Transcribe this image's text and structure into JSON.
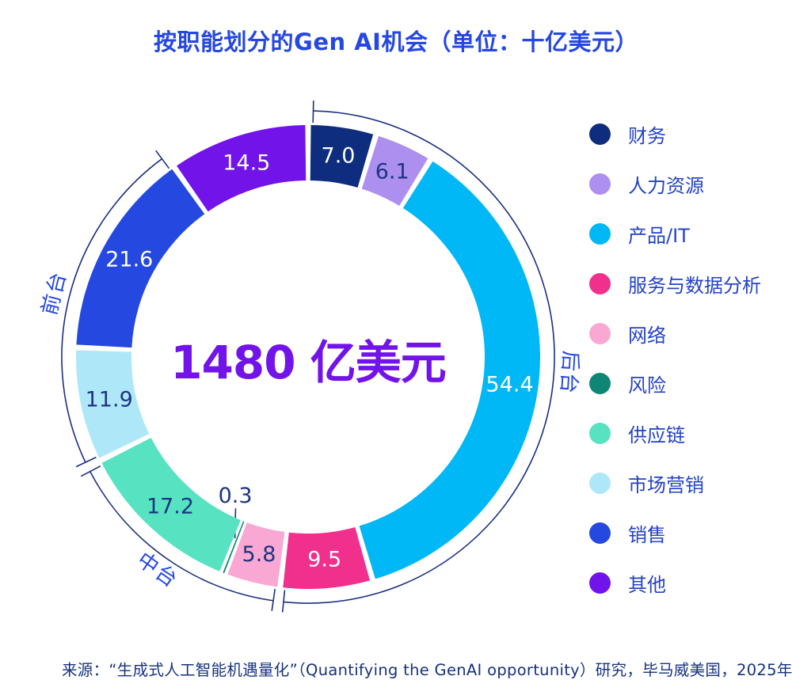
{
  "title": "按职能划分的Gen AI机会（单位：十亿美元）",
  "source": "来源：“生成式人工智能机遇量化”（Quantifying the GenAI opportunity）研究，毕马威美国，2025年2月",
  "colors": {
    "title_blue": "#2547E3",
    "center_purple": "#7213EA",
    "value_navy": "#1D3580",
    "legend_text": "#2342C8",
    "bracket_line": "#1B2F80",
    "source_navy": "#16327E",
    "background": "#FFFFFF"
  },
  "chart_data": {
    "type": "donut",
    "title": "按职能划分的Gen AI机会",
    "unit": "十亿美元",
    "total_label": "1480 亿美元",
    "total_value": 148.3,
    "start_angle_deg": 0,
    "direction": "clockwise",
    "legend_position": "right",
    "segments": [
      {
        "label": "财务",
        "value": 7.0,
        "display": "7.0",
        "color": "#0F2D7E",
        "value_text": "#FFFFFF",
        "group": "后台"
      },
      {
        "label": "人力资源",
        "value": 6.1,
        "display": "6.1",
        "color": "#AD8FF0",
        "value_text": "#1D3580",
        "group": "后台"
      },
      {
        "label": "产品/IT",
        "value": 54.4,
        "display": "54.4",
        "color": "#00B8F5",
        "value_text": "#FFFFFF",
        "group": "后台"
      },
      {
        "label": "服务与数据分析",
        "value": 9.5,
        "display": "9.5",
        "color": "#F0308C",
        "value_text": "#FFFFFF",
        "group": "后台"
      },
      {
        "label": "网络",
        "value": 5.8,
        "display": "5.8",
        "color": "#F9A8D4",
        "value_text": "#1D3580",
        "group": "中台"
      },
      {
        "label": "风险",
        "value": 0.3,
        "display": "0.3",
        "color": "#0F8575",
        "value_text": "#1D3580",
        "group": "中台",
        "callout": true
      },
      {
        "label": "供应链",
        "value": 17.2,
        "display": "17.2",
        "color": "#57E2C2",
        "value_text": "#1D3580",
        "group": "中台"
      },
      {
        "label": "市场营销",
        "value": 11.9,
        "display": "11.9",
        "color": "#AEE8F8",
        "value_text": "#1D3580",
        "group": "前台"
      },
      {
        "label": "销售",
        "value": 21.6,
        "display": "21.6",
        "color": "#2448E0",
        "value_text": "#FFFFFF",
        "group": "前台"
      },
      {
        "label": "其他",
        "value": 14.5,
        "display": "14.5",
        "color": "#7213EA",
        "value_text": "#FFFFFF",
        "group": null
      }
    ],
    "groups": [
      {
        "label": "后台",
        "members": [
          "财务",
          "人力资源",
          "产品/IT",
          "服务与数据分析"
        ]
      },
      {
        "label": "中台",
        "members": [
          "网络",
          "风险",
          "供应链"
        ]
      },
      {
        "label": "前台",
        "members": [
          "市场营销",
          "销售"
        ]
      }
    ]
  }
}
